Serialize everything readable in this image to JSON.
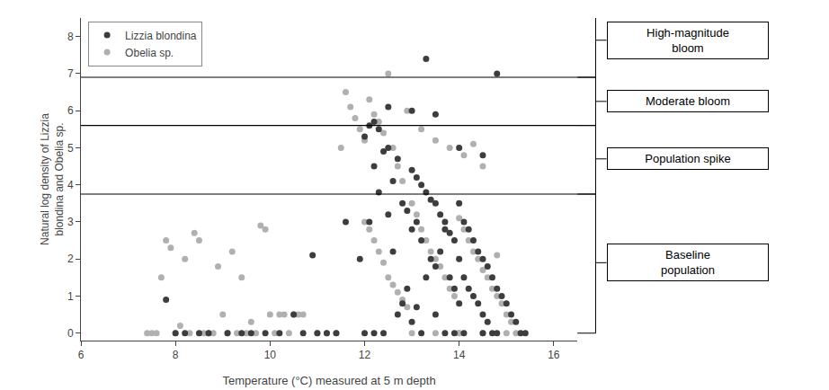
{
  "chart_data": {
    "type": "scatter",
    "xlabel": "Temperature (°C) measured at 5 m depth",
    "ylabel": "Natural log density of Lizzia\nblondina and Obelia sp.",
    "xlim": [
      6,
      16.5
    ],
    "ylim": [
      -0.2,
      8.5
    ],
    "xticks": [
      6,
      8,
      10,
      12,
      14,
      16
    ],
    "yticks": [
      0,
      1,
      2,
      3,
      4,
      5,
      6,
      7,
      8
    ],
    "grid": false,
    "legend": "upper left",
    "hlines": [
      {
        "y": 6.9,
        "color": "black"
      },
      {
        "y": 5.6,
        "color": "black"
      },
      {
        "y": 3.75,
        "color": "black"
      }
    ],
    "annotations": [
      {
        "text": "High-magnitude\nbloom",
        "y": 7.9,
        "span": [
          6.9,
          8.5
        ]
      },
      {
        "text": "Moderate bloom",
        "y": 6.25,
        "span": [
          5.6,
          6.9
        ]
      },
      {
        "text": "Population spike",
        "y": 4.7,
        "span": [
          3.75,
          5.6
        ]
      },
      {
        "text": "Baseline\npopulation",
        "y": 1.9,
        "span": [
          0.0,
          3.75
        ]
      }
    ],
    "series": [
      {
        "name": "Lizzia blondina",
        "color": "#3d3d3d",
        "x": [
          7.8,
          8.0,
          8.2,
          8.5,
          8.7,
          9.1,
          9.4,
          9.6,
          9.9,
          10.2,
          10.5,
          10.7,
          10.9,
          11.0,
          11.2,
          11.4,
          11.6,
          11.9,
          12.0,
          12.0,
          12.1,
          12.1,
          12.2,
          12.2,
          12.2,
          12.3,
          12.3,
          12.4,
          12.4,
          12.5,
          12.5,
          12.5,
          12.6,
          12.6,
          12.7,
          12.7,
          12.8,
          12.8,
          12.9,
          12.9,
          13.0,
          13.0,
          13.0,
          13.0,
          13.1,
          13.1,
          13.1,
          13.2,
          13.2,
          13.2,
          13.3,
          13.3,
          13.3,
          13.4,
          13.4,
          13.5,
          13.5,
          13.5,
          13.5,
          13.6,
          13.6,
          13.7,
          13.7,
          13.7,
          13.8,
          13.8,
          13.9,
          13.9,
          13.9,
          14.0,
          14.0,
          14.0,
          14.0,
          14.1,
          14.1,
          14.1,
          14.2,
          14.2,
          14.3,
          14.3,
          14.4,
          14.4,
          14.5,
          14.5,
          14.5,
          14.5,
          14.6,
          14.6,
          14.7,
          14.7,
          14.8,
          14.8,
          14.8,
          14.9,
          15.0,
          15.1,
          15.2,
          15.3,
          15.4
        ],
        "values": [
          0.9,
          0.0,
          0.0,
          0.0,
          0.0,
          0.0,
          0.0,
          0.0,
          0.0,
          0.0,
          0.5,
          0.0,
          2.1,
          0.0,
          0.0,
          0.0,
          3.0,
          2.0,
          0.0,
          5.3,
          3.0,
          5.6,
          4.5,
          0.0,
          5.7,
          3.8,
          5.5,
          4.9,
          0.0,
          5.0,
          3.2,
          6.1,
          4.1,
          2.2,
          4.7,
          0.5,
          3.5,
          0.8,
          3.3,
          1.2,
          4.4,
          2.8,
          0.3,
          6.0,
          4.2,
          3.0,
          0.7,
          4.0,
          2.5,
          0.0,
          3.8,
          7.4,
          1.5,
          3.6,
          2.0,
          3.5,
          1.8,
          0.5,
          5.9,
          3.2,
          2.2,
          3.0,
          2.8,
          0.0,
          2.7,
          1.5,
          2.5,
          1.2,
          0.0,
          3.5,
          2.0,
          0.8,
          5.0,
          3.0,
          1.5,
          0.0,
          2.8,
          1.2,
          2.5,
          1.0,
          2.2,
          0.8,
          2.0,
          0.5,
          0.0,
          4.8,
          1.8,
          0.3,
          1.5,
          0.0,
          1.2,
          0.0,
          7.0,
          1.0,
          0.8,
          0.5,
          0.3,
          0.0,
          0.0
        ]
      },
      {
        "name": "Obelia sp.",
        "color": "#b0b0b0",
        "x": [
          7.4,
          7.5,
          7.6,
          7.7,
          7.8,
          7.9,
          8.0,
          8.1,
          8.2,
          8.3,
          8.4,
          8.5,
          8.6,
          8.7,
          8.8,
          8.9,
          9.0,
          9.1,
          9.2,
          9.3,
          9.4,
          9.5,
          9.6,
          9.7,
          9.8,
          9.9,
          10.0,
          10.1,
          10.2,
          10.3,
          10.4,
          10.5,
          10.6,
          10.7,
          11.0,
          11.2,
          11.4,
          11.5,
          11.6,
          11.7,
          11.8,
          11.9,
          12.0,
          12.1,
          12.2,
          12.3,
          12.4,
          12.5,
          12.6,
          12.7,
          12.8,
          12.9,
          12.0,
          12.1,
          12.2,
          12.3,
          12.4,
          12.5,
          12.6,
          12.7,
          12.8,
          12.9,
          13.0,
          13.1,
          13.2,
          13.2,
          13.3,
          13.4,
          13.5,
          13.5,
          13.6,
          13.7,
          13.8,
          13.8,
          13.9,
          14.0,
          14.0,
          14.1,
          14.1,
          14.2,
          14.3,
          14.3,
          14.4,
          14.5,
          14.5,
          14.6,
          14.7,
          14.8,
          14.8,
          14.9,
          15.0,
          15.1,
          15.2,
          13.0,
          13.5,
          14.0,
          14.5,
          15.0
        ],
        "values": [
          0.0,
          0.0,
          0.0,
          1.5,
          2.5,
          2.3,
          0.0,
          0.2,
          2.0,
          0.0,
          2.7,
          2.5,
          0.0,
          0.0,
          0.0,
          1.8,
          0.5,
          0.0,
          2.2,
          0.0,
          1.5,
          0.0,
          0.3,
          0.0,
          2.9,
          2.8,
          0.5,
          0.0,
          0.5,
          0.5,
          0.0,
          0.5,
          0.5,
          0.5,
          0.0,
          0.0,
          0.0,
          5.0,
          6.5,
          6.1,
          5.8,
          5.5,
          5.2,
          6.3,
          5.9,
          5.7,
          5.4,
          7.0,
          5.0,
          4.5,
          4.1,
          6.0,
          3.0,
          2.8,
          2.5,
          2.2,
          1.9,
          1.5,
          1.3,
          1.1,
          0.9,
          0.7,
          3.5,
          3.2,
          2.8,
          5.5,
          2.5,
          2.2,
          2.0,
          5.2,
          1.8,
          1.5,
          1.2,
          5.0,
          1.0,
          3.1,
          0.0,
          2.8,
          4.8,
          2.5,
          2.2,
          5.1,
          2.0,
          1.7,
          4.5,
          1.5,
          1.2,
          1.0,
          2.1,
          0.8,
          0.5,
          0.3,
          0.0,
          0.0,
          0.0,
          0.0,
          0.0,
          0.0
        ]
      }
    ]
  }
}
